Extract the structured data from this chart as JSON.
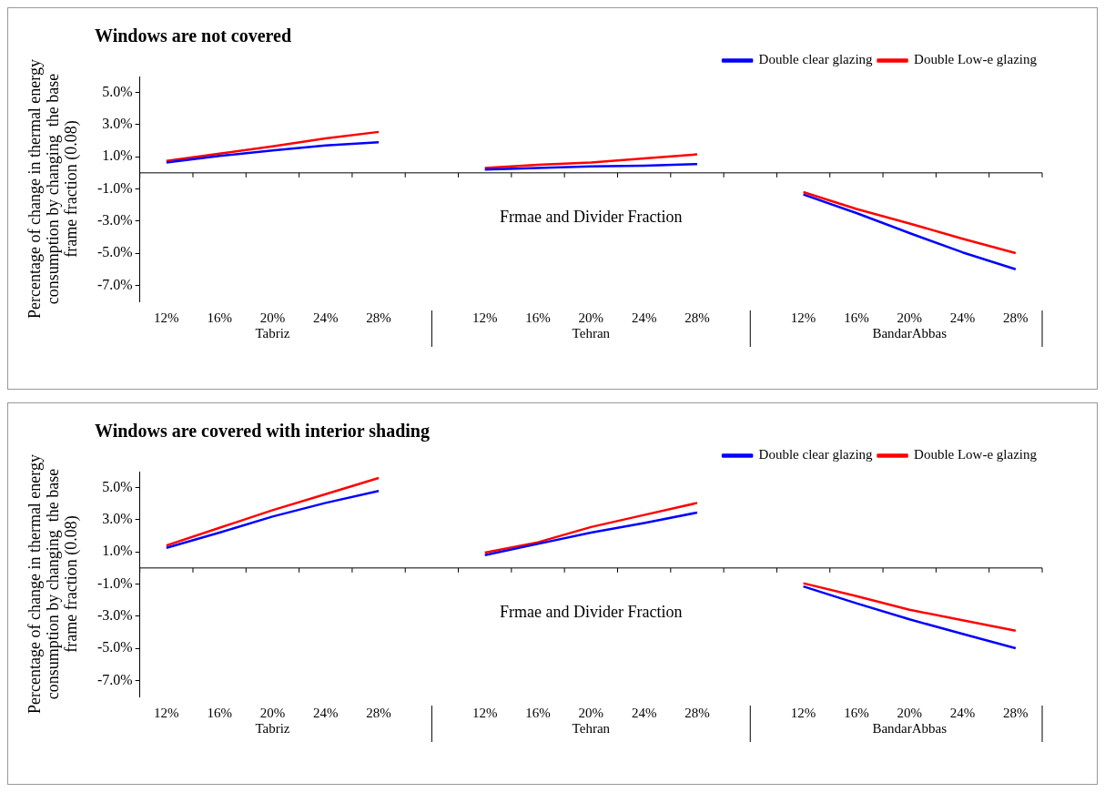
{
  "chart_data": [
    {
      "type": "line",
      "title": "Windows are not covered",
      "xlabel": "Frmae and Divider Fraction",
      "ylabel": "Percentage of change in thermal energy consumption by changing  the base frame fraction (0.08)",
      "categories": [
        "12%",
        "16%",
        "20%",
        "24%",
        "28%",
        null,
        "12%",
        "16%",
        "20%",
        "24%",
        "28%",
        null,
        "12%",
        "16%",
        "20%",
        "24%",
        "28%"
      ],
      "annotations": [
        "Tabriz",
        "Tehran",
        "BandarAbbas"
      ],
      "ylim": [
        -8,
        6
      ],
      "yticks": [
        {
          "value": -7,
          "label": "-7.0%"
        },
        {
          "value": -5,
          "label": "-5.0%"
        },
        {
          "value": -3,
          "label": "-3.0%"
        },
        {
          "value": -1,
          "label": "-1.0%"
        },
        {
          "value": 1,
          "label": "1.0%"
        },
        {
          "value": 3,
          "label": "3.0%"
        },
        {
          "value": 5,
          "label": "5.0%"
        }
      ],
      "grid": false,
      "legend": "top right",
      "marker": "none",
      "series": [
        {
          "name": "Double clear glazing",
          "color": "#0000ff",
          "values": [
            0.65,
            1.05,
            1.4,
            1.7,
            1.9,
            null,
            0.2,
            0.3,
            0.4,
            0.45,
            0.55,
            null,
            -1.35,
            -2.5,
            -3.75,
            -4.95,
            -6.0
          ]
        },
        {
          "name": "Double Low-e glazing",
          "color": "#ff0000",
          "values": [
            0.75,
            1.2,
            1.65,
            2.15,
            2.55,
            null,
            0.3,
            0.5,
            0.65,
            0.9,
            1.15,
            null,
            -1.2,
            -2.25,
            -3.15,
            -4.1,
            -5.0
          ]
        }
      ]
    },
    {
      "type": "line",
      "title": "Windows are covered with interior shading",
      "xlabel": "Frmae and Divider Fraction",
      "ylabel": "Percentage of change in thermal energy consumption by changing  the base frame fraction (0.08)",
      "categories": [
        "12%",
        "16%",
        "20%",
        "24%",
        "28%",
        null,
        "12%",
        "16%",
        "20%",
        "24%",
        "28%",
        null,
        "12%",
        "16%",
        "20%",
        "24%",
        "28%"
      ],
      "annotations": [
        "Tabriz",
        "Tehran",
        "BandarAbbas"
      ],
      "ylim": [
        -8,
        6
      ],
      "yticks": [
        {
          "value": -7,
          "label": "-7.0%"
        },
        {
          "value": -5,
          "label": "-5.0%"
        },
        {
          "value": -3,
          "label": "-3.0%"
        },
        {
          "value": -1,
          "label": "-1.0%"
        },
        {
          "value": 1,
          "label": "1.0%"
        },
        {
          "value": 3,
          "label": "3.0%"
        },
        {
          "value": 5,
          "label": "5.0%"
        }
      ],
      "grid": false,
      "legend": "top right",
      "marker": "none",
      "series": [
        {
          "name": "Double clear glazing",
          "color": "#0000ff",
          "values": [
            1.25,
            2.2,
            3.2,
            4.05,
            4.8,
            null,
            0.8,
            1.5,
            2.2,
            2.8,
            3.45,
            null,
            -1.15,
            -2.2,
            -3.2,
            -4.1,
            -5.0
          ]
        },
        {
          "name": "Double Low-e glazing",
          "color": "#ff0000",
          "values": [
            1.4,
            2.5,
            3.6,
            4.6,
            5.6,
            null,
            0.95,
            1.6,
            2.55,
            3.3,
            4.05,
            null,
            -0.95,
            -1.75,
            -2.6,
            -3.25,
            -3.9
          ]
        }
      ]
    }
  ]
}
